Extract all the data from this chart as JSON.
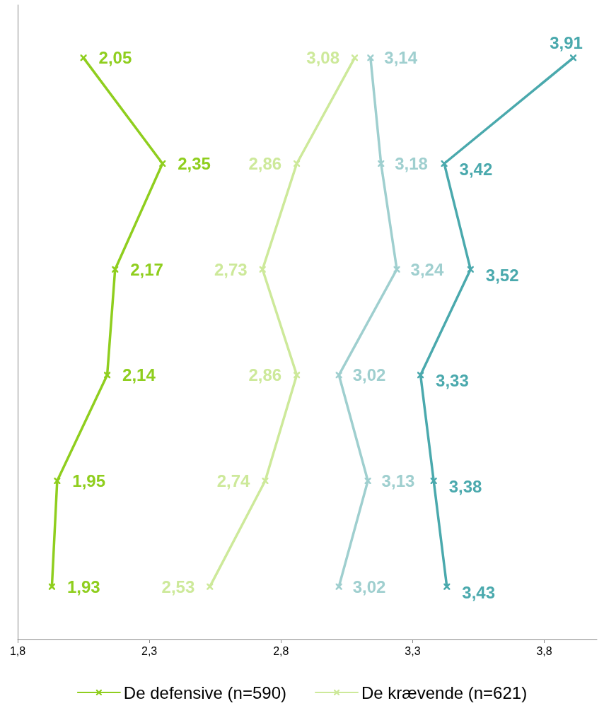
{
  "chart_data": {
    "type": "line",
    "orientation": "horizontal",
    "categories": [
      null,
      null,
      null,
      null,
      null,
      null
    ],
    "series": [
      {
        "name": "De defensive (n=590)",
        "color": "#8fce1e",
        "values": [
          2.05,
          2.35,
          2.17,
          2.14,
          1.95,
          1.93
        ],
        "value_labels": [
          "2,05",
          "2,35",
          "2,17",
          "2,14",
          "1,95",
          "1,93"
        ]
      },
      {
        "name": "De krævende (n=621)",
        "color": "#cde99a",
        "values": [
          3.08,
          2.86,
          2.73,
          2.86,
          2.74,
          2.53
        ],
        "value_labels": [
          "3,08",
          "2,86",
          "2,73",
          "2,86",
          "2,74",
          "2,53"
        ]
      },
      {
        "color": "#9fcfcf",
        "values": [
          3.14,
          3.18,
          3.24,
          3.02,
          3.13,
          3.02
        ],
        "value_labels": [
          "3,14",
          "3,18",
          "3,24",
          "3,02",
          "3,13",
          "3,02"
        ]
      },
      {
        "color": "#4aa9ad",
        "values": [
          3.91,
          3.42,
          3.52,
          3.33,
          3.38,
          3.43
        ],
        "value_labels": [
          "3,91",
          "3,42",
          "3,52",
          "3,33",
          "3,38",
          "3,43"
        ]
      }
    ],
    "xlim": [
      1.8,
      4.0
    ],
    "xticks": [
      {
        "value": 1.8,
        "label": "1,8"
      },
      {
        "value": 2.3,
        "label": "2,3"
      },
      {
        "value": 2.8,
        "label": "2,8"
      },
      {
        "value": 3.3,
        "label": "3,3"
      },
      {
        "value": 3.8,
        "label": "3,8"
      }
    ],
    "grid": false,
    "legend": "bottom",
    "marker": "cross",
    "line_style": "solid"
  }
}
